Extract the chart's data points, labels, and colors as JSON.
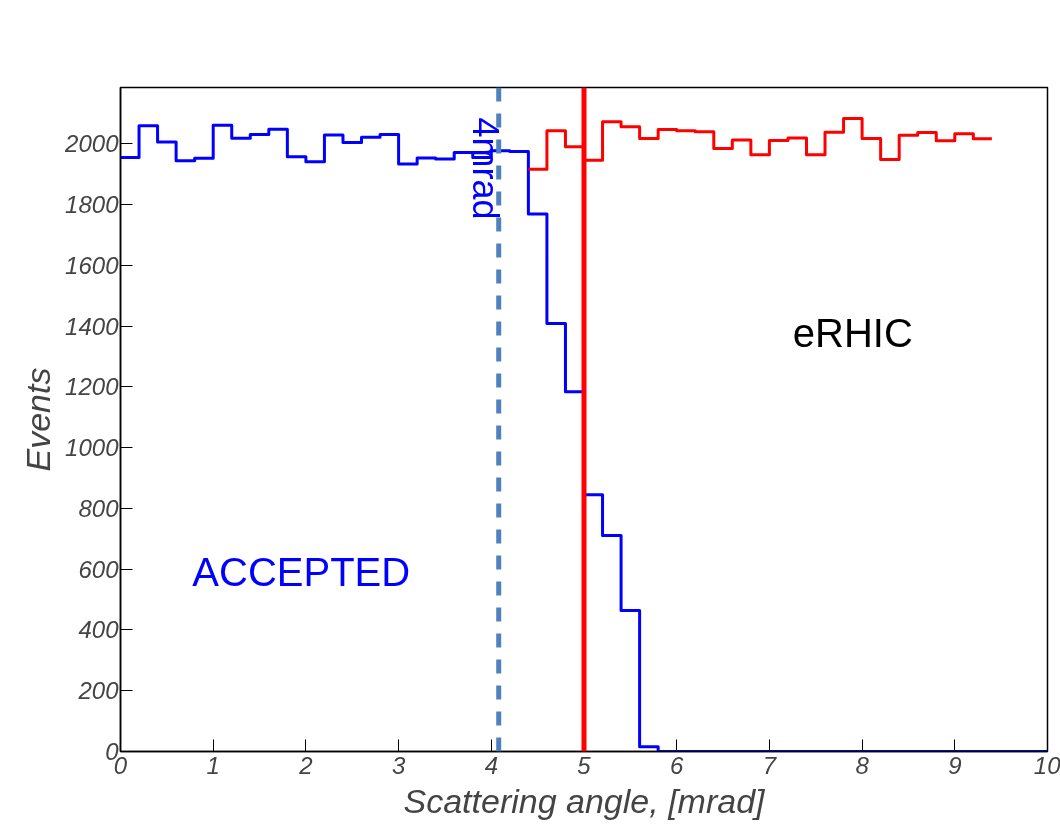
{
  "chart_data": {
    "type": "histogram",
    "xlabel": "Scattering angle, [mrad]",
    "ylabel": "Events",
    "bins": [
      0,
      0.2,
      0.4,
      0.6,
      0.8,
      1.0,
      1.2,
      1.4,
      1.6,
      1.8,
      2.0,
      2.2,
      2.4,
      2.6,
      2.8,
      3.0,
      3.2,
      3.4,
      3.6,
      3.8,
      4.0,
      4.2,
      4.4,
      4.6,
      4.8,
      5.0,
      5.2,
      5.4,
      5.6,
      5.8,
      6.0,
      6.2,
      6.4,
      6.6,
      6.8,
      7.0,
      7.2,
      7.4,
      7.6,
      7.8,
      8.0,
      8.2,
      8.4,
      8.6,
      8.8,
      9.0,
      9.2,
      9.4,
      9.6,
      9.8,
      10.0
    ],
    "series": [
      {
        "color": "#0000ff",
        "values": [
          1955,
          2059,
          2006,
          1944,
          1952,
          2061,
          2018,
          2030,
          2048,
          1957,
          1941,
          2029,
          2004,
          2021,
          2030,
          1933,
          1953,
          1950,
          1971,
          1955,
          1977,
          1974,
          1769,
          1408,
          1184,
          845,
          711,
          464,
          16,
          0,
          0,
          0,
          0,
          0,
          0,
          0,
          0,
          0,
          0,
          0,
          0,
          0,
          0,
          0,
          0,
          0,
          0,
          0,
          0,
          0
        ]
      },
      {
        "color": "#ff0000",
        "bins": [
          4.4,
          4.6,
          4.8,
          5.0,
          5.2,
          5.4,
          5.6,
          5.8,
          6.0,
          6.2,
          6.4,
          6.6,
          6.8,
          7.0,
          7.2,
          7.4,
          7.6,
          7.8,
          8.0,
          8.2,
          8.4,
          8.6,
          8.8,
          9.0,
          9.2,
          9.4
        ],
        "values": [
          1916,
          2043,
          1990,
          1946,
          2072,
          2056,
          2017,
          2047,
          2043,
          2039,
          1984,
          2012,
          1964,
          2011,
          2019,
          1964,
          2038,
          2083,
          2017,
          1948,
          2028,
          2037,
          2010,
          2033,
          2016
        ]
      }
    ],
    "xlim": [
      0,
      10
    ],
    "ylim": [
      0,
      2185
    ],
    "xticks": [
      0,
      1,
      2,
      3,
      4,
      5,
      6,
      7,
      8,
      9,
      10
    ],
    "yticks": [
      0,
      200,
      400,
      600,
      800,
      1000,
      1200,
      1400,
      1600,
      1800,
      2000
    ],
    "ref_lines": [
      {
        "axis": "x",
        "value": 4.08,
        "label": "4mrad",
        "color": "#4f81bd",
        "line_style": "dashed"
      },
      {
        "axis": "x",
        "value": 5.0,
        "color": "#ff0000",
        "line_style": "solid"
      }
    ],
    "annotations": [
      "ACCEPTED",
      "eRHIC"
    ],
    "grid": false
  }
}
